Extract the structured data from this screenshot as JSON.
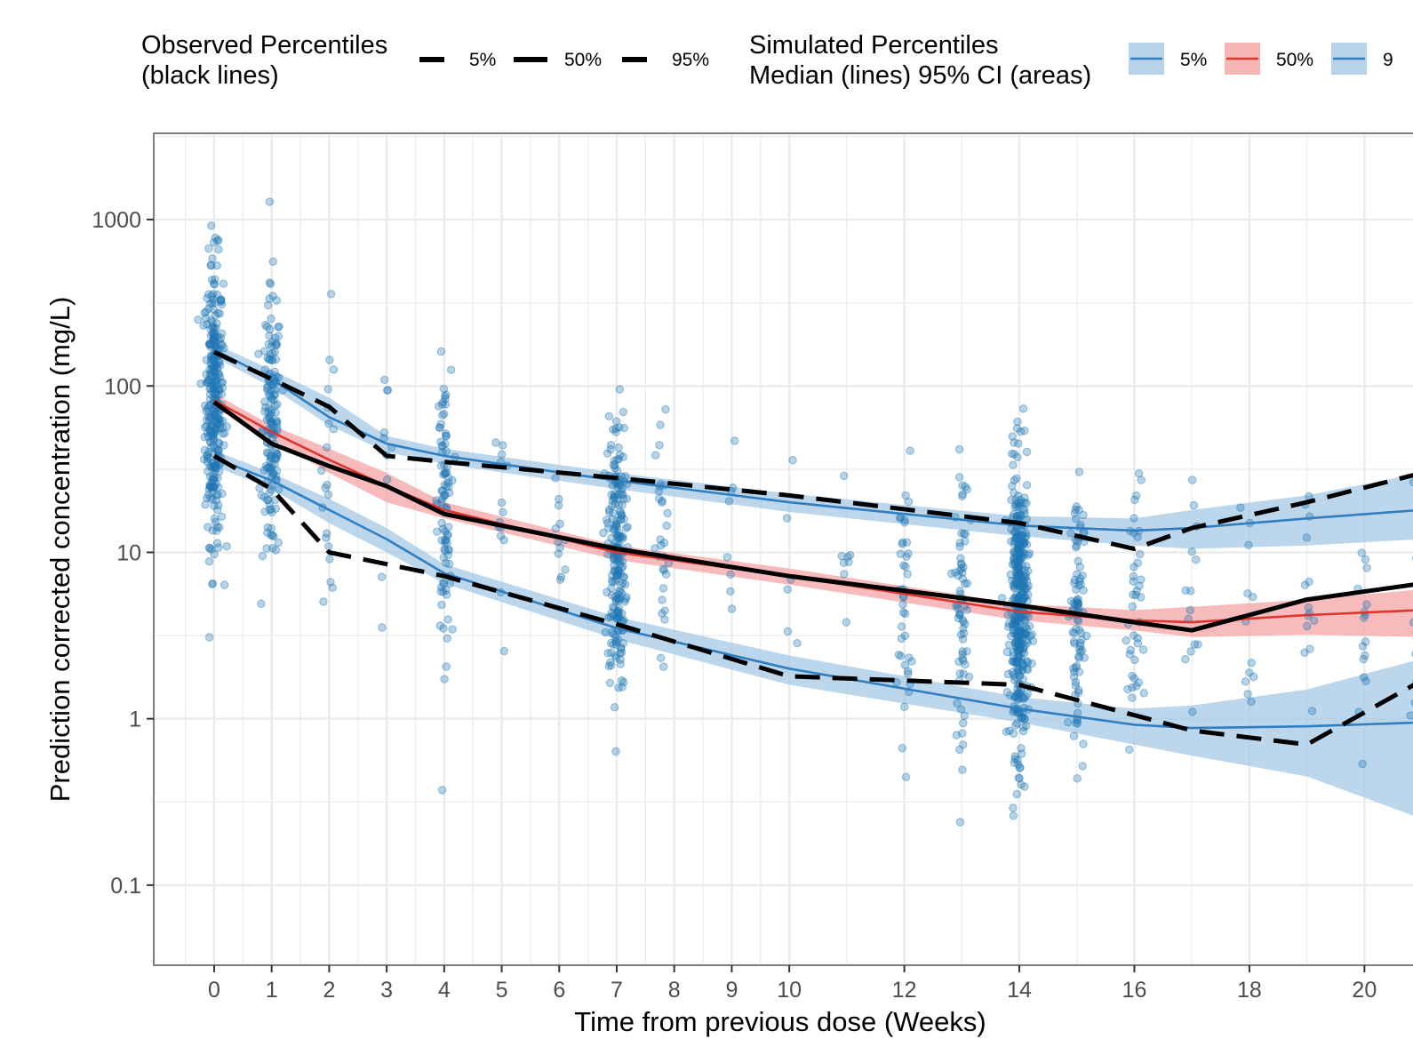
{
  "legend": {
    "observed_title_line1": "Observed Percentiles",
    "observed_title_line2": "(black lines)",
    "observed_keys": [
      "5%",
      "50%",
      "95%"
    ],
    "simulated_title_line1": "Simulated Percentiles",
    "simulated_title_line2": "Median (lines) 95% CI (areas)",
    "simulated_keys": [
      "5%",
      "50%",
      "9"
    ]
  },
  "colors": {
    "points": "#1f77b4",
    "band_outer": "#a6c8e4",
    "band_median": "#f4a4a4",
    "line_outer": "#2f7fc1",
    "line_median": "#e0352f",
    "observed": "#000000",
    "grid": "#ebebeb",
    "frame": "#7f7f7f"
  },
  "chart_data": {
    "type": "scatter",
    "xlabel": "Time from previous dose (Weeks)",
    "ylabel": "Prediction corrected concentration (mg/L)",
    "y_scale": "log10",
    "xlim": [
      -1.05,
      21.2
    ],
    "ylim": [
      0.033,
      3300
    ],
    "x_ticks": [
      0,
      1,
      2,
      3,
      4,
      5,
      6,
      7,
      8,
      9,
      10,
      12,
      14,
      16,
      18,
      20
    ],
    "x_tick_labels": [
      "0",
      "1",
      "2",
      "3",
      "4",
      "5",
      "6",
      "7",
      "8",
      "9",
      "10",
      "12",
      "14",
      "16",
      "18",
      "20"
    ],
    "y_ticks": [
      1000,
      100,
      10,
      1,
      0.1
    ],
    "y_tick_labels": [
      "1000",
      "100",
      "10",
      "1",
      "0.1"
    ],
    "grid": true,
    "legend_position": "top",
    "observed_percentiles": {
      "x": [
        0,
        1,
        2,
        3,
        4,
        7,
        10,
        14,
        16,
        17,
        19,
        21
      ],
      "p5": [
        38,
        24,
        10,
        8.5,
        7.2,
        3.7,
        1.8,
        1.6,
        1.05,
        0.85,
        0.7,
        1.7
      ],
      "p50": [
        80,
        45,
        33,
        25,
        17,
        10.5,
        7.2,
        4.8,
        3.8,
        3.4,
        5.2,
        6.5
      ],
      "p95": [
        160,
        110,
        75,
        38,
        35,
        28,
        22,
        15,
        10.5,
        14,
        20,
        30
      ]
    },
    "simulated_percentiles": {
      "x": [
        0,
        1,
        2,
        3,
        4,
        7,
        10,
        14,
        16,
        17,
        19,
        21
      ],
      "p5_median": [
        37,
        27,
        18,
        12,
        7.5,
        3.5,
        2.0,
        1.15,
        0.92,
        0.88,
        0.9,
        0.95
      ],
      "p5_lower": [
        33,
        24,
        15,
        10,
        6.5,
        3.0,
        1.6,
        0.95,
        0.7,
        0.6,
        0.45,
        0.25
      ],
      "p5_upper": [
        41,
        30,
        21,
        14,
        8.5,
        4.1,
        2.4,
        1.35,
        1.15,
        1.2,
        1.5,
        2.3
      ],
      "p50_median": [
        82,
        53,
        36,
        25,
        18,
        10,
        7.2,
        4.4,
        3.9,
        3.8,
        4.2,
        4.5
      ],
      "p50_lower": [
        74,
        48,
        30,
        20,
        16,
        9,
        6.4,
        3.9,
        3.4,
        3.1,
        3.2,
        3.1
      ],
      "p50_upper": [
        90,
        58,
        42,
        30,
        20,
        11,
        8.0,
        4.9,
        4.5,
        4.7,
        5.2,
        6.0
      ],
      "p95_median": [
        165,
        110,
        65,
        45,
        38,
        27,
        20,
        14.5,
        13.5,
        14,
        16,
        18
      ],
      "p95_lower": [
        150,
        98,
        58,
        40,
        34,
        24,
        17.5,
        12.5,
        11,
        10.5,
        11,
        12
      ],
      "p95_upper": [
        180,
        125,
        85,
        50,
        42,
        30,
        22.5,
        16.5,
        16,
        18,
        22,
        30
      ]
    }
  }
}
